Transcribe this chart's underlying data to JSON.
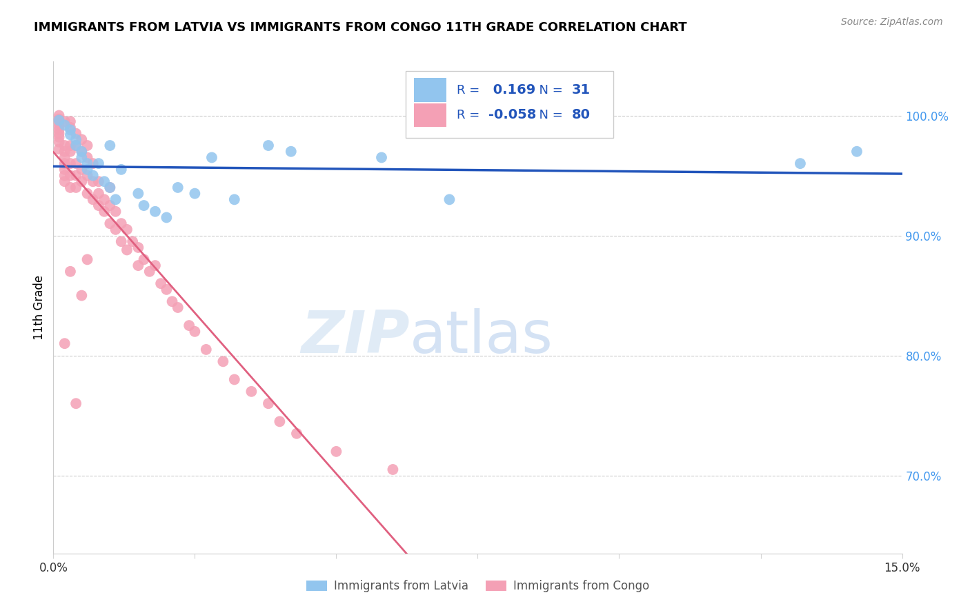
{
  "title": "IMMIGRANTS FROM LATVIA VS IMMIGRANTS FROM CONGO 11TH GRADE CORRELATION CHART",
  "source": "Source: ZipAtlas.com",
  "ylabel": "11th Grade",
  "xlim": [
    0.0,
    0.15
  ],
  "ylim": [
    0.635,
    1.045
  ],
  "legend_r_latvia": "0.169",
  "legend_n_latvia": "31",
  "legend_r_congo": "-0.058",
  "legend_n_congo": "80",
  "watermark_zip": "ZIP",
  "watermark_atlas": "atlas",
  "latvia_color": "#92C5EE",
  "congo_color": "#F4A0B5",
  "latvia_line_color": "#2255BB",
  "congo_line_solid_color": "#E06080",
  "congo_line_dash_color": "#E8A0B8",
  "legend_text_color": "#2255BB",
  "right_axis_color": "#4499EE",
  "ytick_vals": [
    1.0,
    0.9,
    0.8,
    0.7
  ],
  "ytick_labels": [
    "100.0%",
    "90.0%",
    "80.0%",
    "70.0%"
  ],
  "latvia_x": [
    0.001,
    0.002,
    0.003,
    0.003,
    0.004,
    0.004,
    0.005,
    0.005,
    0.006,
    0.006,
    0.007,
    0.008,
    0.009,
    0.01,
    0.01,
    0.011,
    0.012,
    0.015,
    0.016,
    0.018,
    0.02,
    0.022,
    0.025,
    0.028,
    0.032,
    0.038,
    0.042,
    0.058,
    0.07,
    0.132,
    0.142
  ],
  "latvia_y": [
    0.996,
    0.992,
    0.988,
    0.984,
    0.98,
    0.975,
    0.97,
    0.965,
    0.96,
    0.955,
    0.95,
    0.96,
    0.945,
    0.94,
    0.975,
    0.93,
    0.955,
    0.935,
    0.925,
    0.92,
    0.915,
    0.94,
    0.935,
    0.965,
    0.93,
    0.975,
    0.97,
    0.965,
    0.93,
    0.96,
    0.97
  ],
  "congo_x": [
    0.001,
    0.001,
    0.001,
    0.001,
    0.001,
    0.001,
    0.001,
    0.001,
    0.001,
    0.002,
    0.002,
    0.002,
    0.002,
    0.002,
    0.002,
    0.002,
    0.002,
    0.003,
    0.003,
    0.003,
    0.003,
    0.003,
    0.003,
    0.003,
    0.004,
    0.004,
    0.004,
    0.004,
    0.004,
    0.005,
    0.005,
    0.005,
    0.005,
    0.006,
    0.006,
    0.006,
    0.006,
    0.007,
    0.007,
    0.007,
    0.008,
    0.008,
    0.008,
    0.009,
    0.009,
    0.01,
    0.01,
    0.01,
    0.011,
    0.011,
    0.012,
    0.012,
    0.013,
    0.013,
    0.014,
    0.015,
    0.015,
    0.016,
    0.017,
    0.018,
    0.019,
    0.02,
    0.021,
    0.022,
    0.024,
    0.025,
    0.027,
    0.03,
    0.032,
    0.035,
    0.038,
    0.04,
    0.043,
    0.05,
    0.06,
    0.002,
    0.003,
    0.004,
    0.005,
    0.006
  ],
  "congo_y": [
    1.0,
    0.997,
    0.994,
    0.991,
    0.988,
    0.985,
    0.982,
    0.978,
    0.972,
    0.995,
    0.975,
    0.97,
    0.965,
    0.96,
    0.955,
    0.95,
    0.945,
    0.995,
    0.99,
    0.975,
    0.97,
    0.96,
    0.95,
    0.94,
    0.985,
    0.975,
    0.96,
    0.95,
    0.94,
    0.98,
    0.97,
    0.955,
    0.945,
    0.975,
    0.965,
    0.95,
    0.935,
    0.96,
    0.945,
    0.93,
    0.945,
    0.935,
    0.925,
    0.93,
    0.92,
    0.94,
    0.925,
    0.91,
    0.92,
    0.905,
    0.91,
    0.895,
    0.905,
    0.888,
    0.895,
    0.89,
    0.875,
    0.88,
    0.87,
    0.875,
    0.86,
    0.855,
    0.845,
    0.84,
    0.825,
    0.82,
    0.805,
    0.795,
    0.78,
    0.77,
    0.76,
    0.745,
    0.735,
    0.72,
    0.705,
    0.81,
    0.87,
    0.76,
    0.85,
    0.88
  ]
}
